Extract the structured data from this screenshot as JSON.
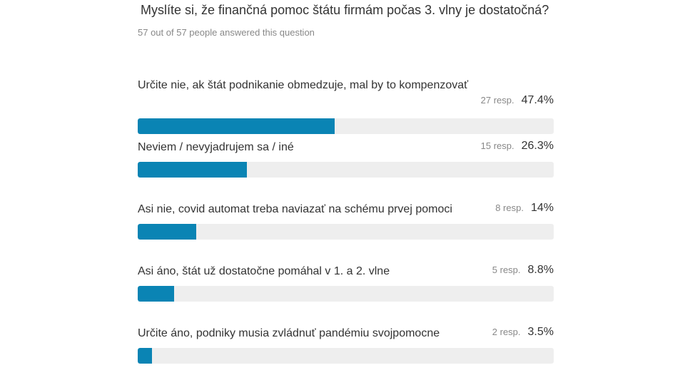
{
  "question": {
    "title": "Myslíte si, že finančná pomoc štátu firmám počas 3. vlny je dostatočná?",
    "responses_text": "57 out of 57 people answered this question"
  },
  "chart_data": {
    "type": "bar",
    "orientation": "horizontal",
    "categories": [
      "Určite nie, ak štát podnikanie obmedzuje, mal by to kompenzovať",
      "Neviem / nevyjadrujem sa / iné",
      "Asi nie, covid automat treba naviazať na schému prvej pomoci",
      "Asi áno, štát už dostatočne pomáhal v 1. a 2. vlne",
      "Určite áno, podniky musia zvládnuť pandémiu svojpomocne"
    ],
    "series": [
      {
        "values": [
          47.4,
          26.3,
          14,
          8.8,
          3.5
        ]
      }
    ],
    "xlim": [
      0,
      100
    ],
    "bar_color": "#0a84b4",
    "track_color": "#eeeeee"
  },
  "options": [
    {
      "label": "Určite nie, ak štát podnikanie obmedzuje, mal by to kompenzovať",
      "resp": "27 resp.",
      "pct": "47.4%",
      "value": 47.4
    },
    {
      "label": "Neviem / nevyjadrujem sa / iné",
      "resp": "15 resp.",
      "pct": "26.3%",
      "value": 26.3
    },
    {
      "label": "Asi nie, covid automat treba naviazať na schému prvej pomoci",
      "resp": "8 resp.",
      "pct": "14%",
      "value": 14
    },
    {
      "label": "Asi áno, štát už dostatočne pomáhal v 1. a 2. vlne",
      "resp": "5 resp.",
      "pct": "8.8%",
      "value": 8.8
    },
    {
      "label": "Určite áno, podniky musia zvládnuť pandémiu svojpomocne",
      "resp": "2 resp.",
      "pct": "3.5%",
      "value": 3.5
    }
  ]
}
